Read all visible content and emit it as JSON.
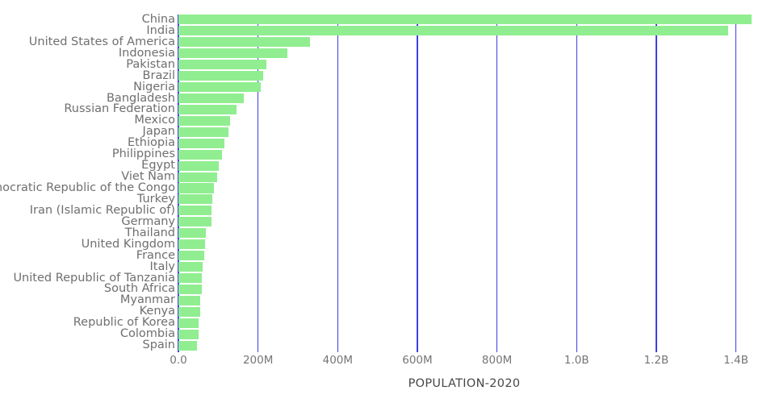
{
  "chart_data": {
    "type": "bar",
    "orientation": "horizontal",
    "title": "POPULATION-2020",
    "grid": "vertical gridlines behind bars, drawn at every x tick",
    "legend": "none",
    "xlim_millions": [
      0,
      1439.32
    ],
    "x_ticks": [
      {
        "label": "0.0",
        "value": 0
      },
      {
        "label": "200M",
        "value": 200
      },
      {
        "label": "400M",
        "value": 400
      },
      {
        "label": "600M",
        "value": 600
      },
      {
        "label": "800M",
        "value": 800
      },
      {
        "label": "1.0B",
        "value": 1000
      },
      {
        "label": "1.2B",
        "value": 1200
      },
      {
        "label": "1.4B",
        "value": 1400
      }
    ],
    "categories": [
      "China",
      "India",
      "United States of America",
      "Indonesia",
      "Pakistan",
      "Brazil",
      "Nigeria",
      "Bangladesh",
      "Russian Federation",
      "Mexico",
      "Japan",
      "Ethiopia",
      "Philippines",
      "Egypt",
      "Viet Nam",
      "Democratic Republic of the Congo",
      "Turkey",
      "Iran (Islamic Republic of)",
      "Germany",
      "Thailand",
      "United Kingdom",
      "France",
      "Italy",
      "United Republic of Tanzania",
      "South Africa",
      "Myanmar",
      "Kenya",
      "Republic of Korea",
      "Colombia",
      "Spain"
    ],
    "values_millions": [
      1439.32,
      1380.0,
      331.0,
      273.52,
      220.89,
      212.56,
      206.14,
      164.69,
      145.93,
      128.93,
      126.48,
      114.96,
      109.58,
      102.33,
      97.34,
      89.56,
      84.34,
      83.99,
      83.78,
      69.8,
      67.89,
      65.27,
      60.46,
      59.73,
      59.31,
      54.41,
      53.77,
      51.27,
      50.88,
      46.75
    ],
    "bar_color": "#90EE90",
    "gridline_color": "#3E3EE4",
    "tick_label_color": "#757575",
    "category_label_color": "#6f6f6f",
    "title_color": "#474747",
    "background_color": "#ffffff"
  }
}
